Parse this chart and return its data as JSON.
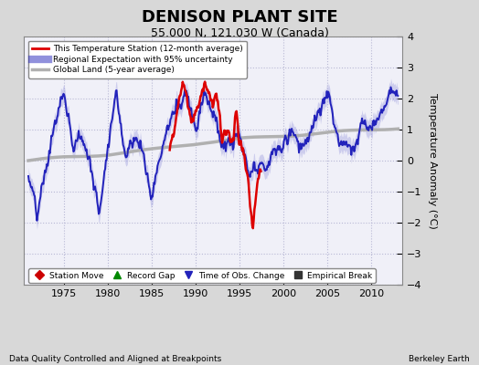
{
  "title": "DENISON PLANT SITE",
  "subtitle": "55.000 N, 121.030 W (Canada)",
  "ylabel": "Temperature Anomaly (°C)",
  "footer_left": "Data Quality Controlled and Aligned at Breakpoints",
  "footer_right": "Berkeley Earth",
  "xlim": [
    1970.5,
    2013.5
  ],
  "ylim": [
    -4,
    4
  ],
  "yticks": [
    -4,
    -3,
    -2,
    -1,
    0,
    1,
    2,
    3,
    4
  ],
  "xticks": [
    1975,
    1980,
    1985,
    1990,
    1995,
    2000,
    2005,
    2010
  ],
  "background_color": "#d8d8d8",
  "plot_background": "#f0f0f8",
  "legend_items": [
    {
      "label": "This Temperature Station (12-month average)",
      "color": "#cc0000",
      "lw": 1.8
    },
    {
      "label": "Regional Expectation with 95% uncertainty",
      "color": "#2222bb",
      "lw": 1.5
    },
    {
      "label": "Global Land (5-year average)",
      "color": "#b0b0b0",
      "lw": 2.5
    }
  ],
  "bottom_legend": [
    {
      "marker": "D",
      "color": "#cc0000",
      "label": "Station Move"
    },
    {
      "marker": "^",
      "color": "#008800",
      "label": "Record Gap"
    },
    {
      "marker": "v",
      "color": "#2222bb",
      "label": "Time of Obs. Change"
    },
    {
      "marker": "s",
      "color": "#333333",
      "label": "Empirical Break"
    }
  ],
  "station_color": "#dd0000",
  "regional_color": "#2222bb",
  "regional_fill_color": "#9999dd",
  "global_color": "#b0b0b0",
  "global_lw": 2.5,
  "station_lw": 1.8,
  "regional_lw": 1.4,
  "title_fontsize": 13,
  "subtitle_fontsize": 9,
  "ylabel_fontsize": 8,
  "tick_fontsize": 8
}
